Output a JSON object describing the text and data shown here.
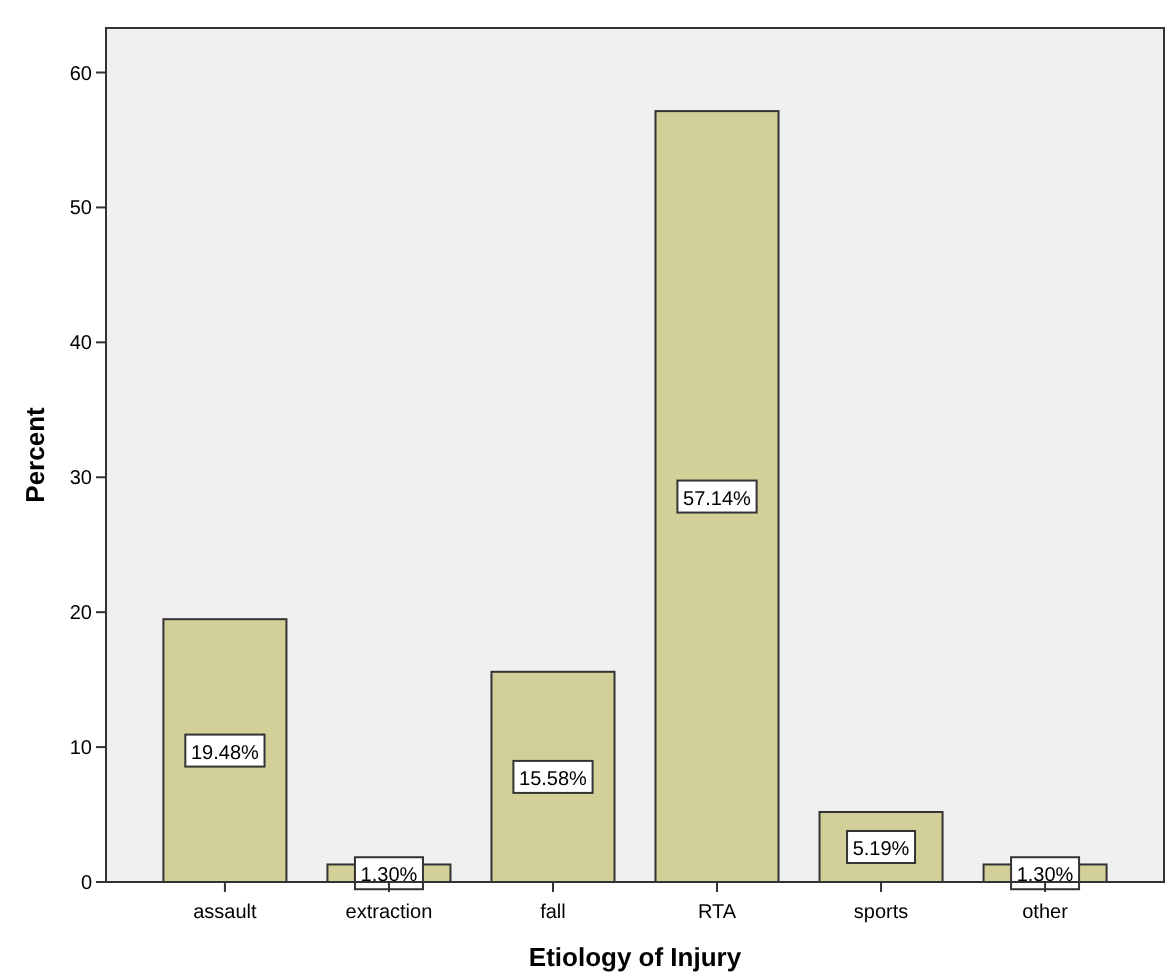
{
  "chart_data": {
    "type": "bar",
    "xlabel": "Etiology of Injury",
    "ylabel": "Percent",
    "categories": [
      "assault",
      "extraction",
      "fall",
      "RTA",
      "sports",
      "other"
    ],
    "values": [
      19.48,
      1.3,
      15.58,
      57.14,
      5.19,
      1.3
    ],
    "value_labels": [
      "19.48%",
      "1.30%",
      "15.58%",
      "57.14%",
      "5.19%",
      "1.30%"
    ],
    "color": "#d3cf98",
    "ylim": [
      0,
      63.3
    ],
    "yticks": [
      0,
      10,
      20,
      30,
      40,
      50,
      60
    ],
    "grid": false
  }
}
